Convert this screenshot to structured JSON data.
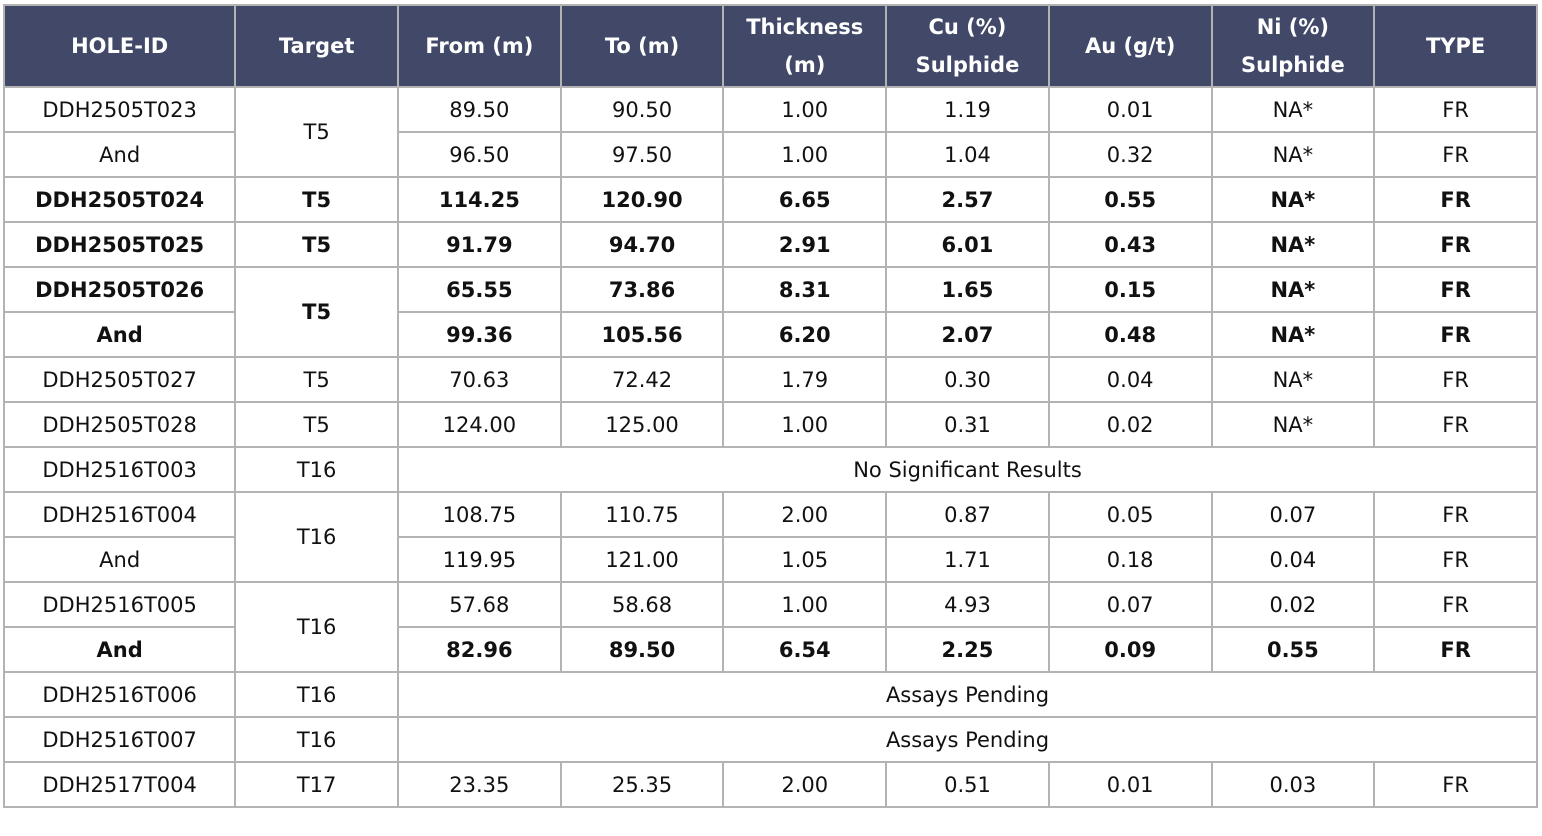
{
  "headers": [
    "HOLE-ID",
    "Target",
    "From (m)",
    "To (m)",
    "Thickness (m)",
    "Cu (%) Sulphide",
    "Au (g/t)",
    "Ni (%) Sulphide",
    "TYPE"
  ],
  "rows": [
    {
      "hole": "DDH2505T023",
      "target": "T5",
      "from": "89.50",
      "to": "90.50",
      "thickness": "1.00",
      "cu": "1.19",
      "au": "0.01",
      "ni": "NA*",
      "type": "FR"
    },
    {
      "hole": "And",
      "from": "96.50",
      "to": "97.50",
      "thickness": "1.00",
      "cu": "1.04",
      "au": "0.32",
      "ni": "NA*",
      "type": "FR"
    },
    {
      "hole": "DDH2505T024",
      "target": "T5",
      "from": "114.25",
      "to": "120.90",
      "thickness": "6.65",
      "cu": "2.57",
      "au": "0.55",
      "ni": "NA*",
      "type": "FR"
    },
    {
      "hole": "DDH2505T025",
      "target": "T5",
      "from": "91.79",
      "to": "94.70",
      "thickness": "2.91",
      "cu": "6.01",
      "au": "0.43",
      "ni": "NA*",
      "type": "FR"
    },
    {
      "hole": "DDH2505T026",
      "target": "T5",
      "from": "65.55",
      "to": "73.86",
      "thickness": "8.31",
      "cu": "1.65",
      "au": "0.15",
      "ni": "NA*",
      "type": "FR"
    },
    {
      "hole": "And",
      "from": "99.36",
      "to": "105.56",
      "thickness": "6.20",
      "cu": "2.07",
      "au": "0.48",
      "ni": "NA*",
      "type": "FR"
    },
    {
      "hole": "DDH2505T027",
      "target": "T5",
      "from": "70.63",
      "to": "72.42",
      "thickness": "1.79",
      "cu": "0.30",
      "au": "0.04",
      "ni": "NA*",
      "type": "FR"
    },
    {
      "hole": "DDH2505T028",
      "target": "T5",
      "from": "124.00",
      "to": "125.00",
      "thickness": "1.00",
      "cu": "0.31",
      "au": "0.02",
      "ni": "NA*",
      "type": "FR"
    },
    {
      "hole": "DDH2516T003",
      "target": "T16",
      "note": "No Significant Results"
    },
    {
      "hole": "DDH2516T004",
      "target": "T16",
      "from": "108.75",
      "to": "110.75",
      "thickness": "2.00",
      "cu": "0.87",
      "au": "0.05",
      "ni": "0.07",
      "type": "FR"
    },
    {
      "hole": "And",
      "from": "119.95",
      "to": "121.00",
      "thickness": "1.05",
      "cu": "1.71",
      "au": "0.18",
      "ni": "0.04",
      "type": "FR"
    },
    {
      "hole": "DDH2516T005",
      "target": "T16",
      "from": "57.68",
      "to": "58.68",
      "thickness": "1.00",
      "cu": "4.93",
      "au": "0.07",
      "ni": "0.02",
      "type": "FR"
    },
    {
      "hole": "And",
      "from": "82.96",
      "to": "89.50",
      "thickness": "6.54",
      "cu": "2.25",
      "au": "0.09",
      "ni": "0.55",
      "type": "FR"
    },
    {
      "hole": "DDH2516T006",
      "target": "T16",
      "note": "Assays Pending"
    },
    {
      "hole": "DDH2516T007",
      "target": "T16",
      "note": "Assays Pending"
    },
    {
      "hole": "DDH2517T004",
      "target": "T17",
      "from": "23.35",
      "to": "25.35",
      "thickness": "2.00",
      "cu": "0.51",
      "au": "0.01",
      "ni": "0.03",
      "type": "FR"
    }
  ],
  "colors": {
    "header_bg": "#414868",
    "header_text": "#ffffff",
    "border": "#b3b3b3"
  }
}
